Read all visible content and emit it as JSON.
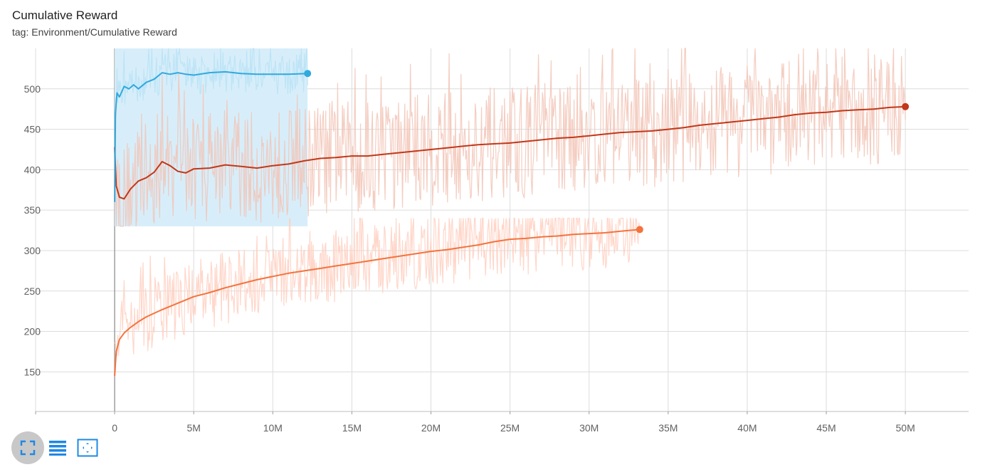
{
  "card": {
    "title": "Cumulative Reward",
    "subtitle": "tag: Environment/Cumulative Reward"
  },
  "toolbar": {
    "buttons": [
      {
        "icon": "fit-domain-icon",
        "active": true
      },
      {
        "icon": "log-lines-icon",
        "active": false
      },
      {
        "icon": "fit-data-icon",
        "active": false
      }
    ],
    "icon_color": "#1e88e5"
  },
  "chart_data": {
    "type": "line",
    "title": "Cumulative Reward",
    "subtitle": "tag: Environment/Cumulative Reward",
    "xlabel": "",
    "ylabel": "",
    "x_tick_labels": [
      "0",
      "5M",
      "10M",
      "15M",
      "20M",
      "25M",
      "30M",
      "35M",
      "40M",
      "45M",
      "50M"
    ],
    "x_ticks": [
      0,
      5000000,
      10000000,
      15000000,
      20000000,
      25000000,
      30000000,
      35000000,
      40000000,
      45000000,
      50000000
    ],
    "y_ticks": [
      150,
      200,
      250,
      300,
      350,
      400,
      450,
      500
    ],
    "xlim": [
      -5000000,
      54000000
    ],
    "ylim": [
      101,
      550
    ],
    "grid": true,
    "legend": "none",
    "series": [
      {
        "color": "#f4733d",
        "raw_color": "#ffcfc0",
        "points": [
          [
            0,
            145
          ],
          [
            100000,
            175
          ],
          [
            300000,
            190
          ],
          [
            600000,
            198
          ],
          [
            1000000,
            205
          ],
          [
            1500000,
            212
          ],
          [
            2000000,
            218
          ],
          [
            3000000,
            227
          ],
          [
            4000000,
            235
          ],
          [
            5000000,
            243
          ],
          [
            6000000,
            248
          ],
          [
            7000000,
            254
          ],
          [
            8000000,
            259
          ],
          [
            9000000,
            264
          ],
          [
            10000000,
            268
          ],
          [
            11000000,
            272
          ],
          [
            12000000,
            275
          ],
          [
            13000000,
            278
          ],
          [
            14000000,
            281
          ],
          [
            15000000,
            284
          ],
          [
            16000000,
            287
          ],
          [
            17000000,
            290
          ],
          [
            18000000,
            293
          ],
          [
            19000000,
            296
          ],
          [
            20000000,
            299
          ],
          [
            21000000,
            301
          ],
          [
            22000000,
            304
          ],
          [
            23000000,
            307
          ],
          [
            24000000,
            311
          ],
          [
            25000000,
            314
          ],
          [
            26000000,
            315
          ],
          [
            27000000,
            317
          ],
          [
            28000000,
            318
          ],
          [
            29000000,
            320
          ],
          [
            30000000,
            321
          ],
          [
            31000000,
            322
          ],
          [
            32000000,
            324
          ],
          [
            33200000,
            326
          ]
        ],
        "raw_band": [
          170,
          340
        ]
      },
      {
        "color": "#c1381a",
        "raw_color": "#f2c4b6",
        "points": [
          [
            0,
            428
          ],
          [
            100000,
            380
          ],
          [
            300000,
            366
          ],
          [
            600000,
            364
          ],
          [
            1000000,
            376
          ],
          [
            1500000,
            386
          ],
          [
            2000000,
            390
          ],
          [
            2500000,
            397
          ],
          [
            3000000,
            410
          ],
          [
            3500000,
            405
          ],
          [
            4000000,
            398
          ],
          [
            4500000,
            396
          ],
          [
            5000000,
            401
          ],
          [
            6000000,
            402
          ],
          [
            7000000,
            406
          ],
          [
            8000000,
            404
          ],
          [
            9000000,
            402
          ],
          [
            10000000,
            405
          ],
          [
            11000000,
            407
          ],
          [
            12000000,
            411
          ],
          [
            13000000,
            414
          ],
          [
            14000000,
            415
          ],
          [
            15000000,
            417
          ],
          [
            16000000,
            417
          ],
          [
            17000000,
            419
          ],
          [
            18000000,
            421
          ],
          [
            19000000,
            423
          ],
          [
            20000000,
            425
          ],
          [
            21000000,
            427
          ],
          [
            22000000,
            429
          ],
          [
            23000000,
            431
          ],
          [
            24000000,
            432
          ],
          [
            25000000,
            433
          ],
          [
            26000000,
            435
          ],
          [
            27000000,
            437
          ],
          [
            28000000,
            439
          ],
          [
            29000000,
            440
          ],
          [
            30000000,
            442
          ],
          [
            31000000,
            444
          ],
          [
            32000000,
            446
          ],
          [
            33000000,
            447
          ],
          [
            34000000,
            448
          ],
          [
            35000000,
            450
          ],
          [
            36000000,
            452
          ],
          [
            37000000,
            455
          ],
          [
            38000000,
            457
          ],
          [
            39000000,
            459
          ],
          [
            40000000,
            461
          ],
          [
            41000000,
            463
          ],
          [
            42000000,
            465
          ],
          [
            43000000,
            468
          ],
          [
            44000000,
            470
          ],
          [
            45000000,
            471
          ],
          [
            46000000,
            473
          ],
          [
            47000000,
            474
          ],
          [
            48000000,
            475
          ],
          [
            49000000,
            477
          ],
          [
            50000000,
            478
          ]
        ],
        "raw_band": [
          330,
          550
        ]
      },
      {
        "color": "#30a9de",
        "raw_color": "#b8e2f5",
        "points": [
          [
            0,
            360
          ],
          [
            50000,
            470
          ],
          [
            150000,
            495
          ],
          [
            300000,
            490
          ],
          [
            600000,
            503
          ],
          [
            900000,
            500
          ],
          [
            1200000,
            505
          ],
          [
            1500000,
            500
          ],
          [
            2000000,
            508
          ],
          [
            2500000,
            512
          ],
          [
            3000000,
            520
          ],
          [
            3500000,
            518
          ],
          [
            4000000,
            520
          ],
          [
            4500000,
            518
          ],
          [
            5000000,
            517
          ],
          [
            6000000,
            520
          ],
          [
            7000000,
            521
          ],
          [
            8000000,
            519
          ],
          [
            9000000,
            518
          ],
          [
            10000000,
            518
          ],
          [
            11000000,
            518
          ],
          [
            12200000,
            519
          ]
        ],
        "raw_band": [
          330,
          550
        ]
      }
    ]
  }
}
